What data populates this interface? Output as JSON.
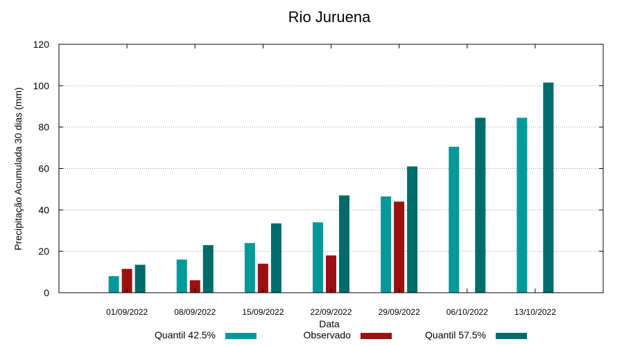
{
  "chart_data": {
    "type": "bar",
    "title": "Rio Juruena",
    "xlabel": "Data",
    "ylabel": "Precipitação Acumulada 30 dias (mm)",
    "ylim": [
      0,
      120
    ],
    "yticks": [
      0,
      20,
      40,
      60,
      80,
      100,
      120
    ],
    "grid": true,
    "legend_position": "bottom",
    "categories": [
      "01/09/2022",
      "08/09/2022",
      "15/09/2022",
      "22/09/2022",
      "29/09/2022",
      "06/10/2022",
      "13/10/2022"
    ],
    "series": [
      {
        "name": "Quantil 42.5%",
        "color": "#009999",
        "values": [
          8,
          16,
          24,
          34,
          46.5,
          70.5,
          84.5
        ]
      },
      {
        "name": "Observado",
        "color": "#991111",
        "values": [
          11.5,
          6,
          14,
          18,
          44,
          null,
          null
        ]
      },
      {
        "name": "Quantil 57.5%",
        "color": "#006b6b",
        "values": [
          13.5,
          23,
          33.5,
          47,
          61,
          84.5,
          101.5
        ]
      }
    ]
  }
}
